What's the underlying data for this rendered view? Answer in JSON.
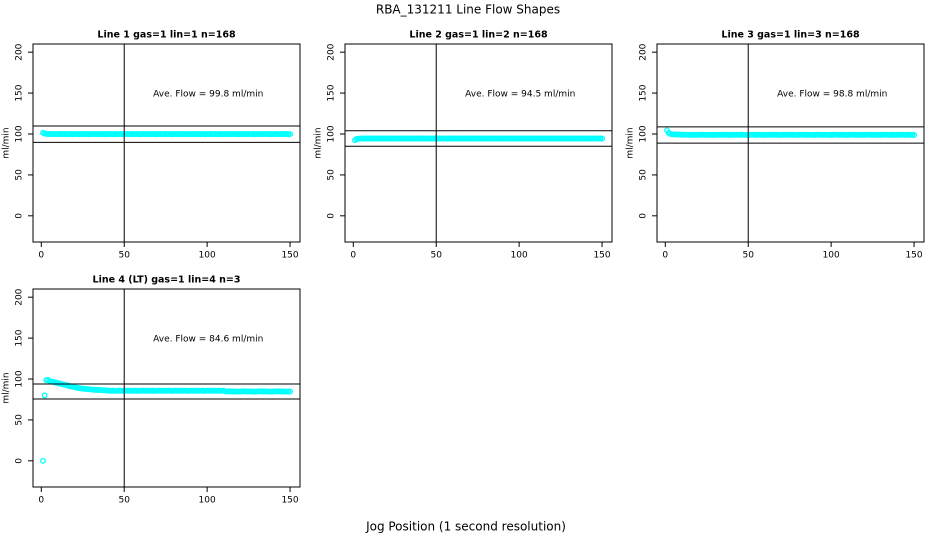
{
  "title": "RBA_131211  Line Flow Shapes",
  "x_label": "Jog Position (1 second resolution)",
  "chart_data": [
    {
      "type": "scatter",
      "title": "Line 1 gas=1 lin=1 n=168",
      "y_label": "ml/min",
      "annotation": "Ave. Flow =  99.8  ml/min",
      "color": "#00ffff",
      "xlim": [
        -5,
        156
      ],
      "ylim": [
        -32,
        210
      ],
      "xticks": [
        0,
        50,
        100,
        150
      ],
      "yticks": [
        0,
        50,
        100,
        150,
        200
      ],
      "hlines": [
        109.8,
        89.8
      ],
      "vline": 50,
      "x": [
        1,
        2,
        3,
        4,
        5,
        6,
        7,
        8,
        9,
        10,
        11,
        12,
        13,
        14,
        15,
        16,
        17,
        18,
        19,
        20,
        21,
        22,
        23,
        24,
        25,
        26,
        27,
        28,
        29,
        30,
        31,
        32,
        33,
        34,
        35,
        36,
        37,
        38,
        39,
        40,
        41,
        42,
        43,
        44,
        45,
        46,
        47,
        48,
        49,
        50,
        51,
        52,
        53,
        54,
        55,
        56,
        57,
        58,
        59,
        60,
        61,
        62,
        63,
        64,
        65,
        66,
        67,
        68,
        69,
        70,
        71,
        72,
        73,
        74,
        75,
        76,
        77,
        78,
        79,
        80,
        81,
        82,
        83,
        84,
        85,
        86,
        87,
        88,
        89,
        90,
        91,
        92,
        93,
        94,
        95,
        96,
        97,
        98,
        99,
        100,
        101,
        102,
        103,
        104,
        105,
        106,
        107,
        108,
        109,
        110,
        111,
        112,
        113,
        114,
        115,
        116,
        117,
        118,
        119,
        120,
        121,
        122,
        123,
        124,
        125,
        126,
        127,
        128,
        129,
        130,
        131,
        132,
        133,
        134,
        135,
        136,
        137,
        138,
        139,
        140,
        141,
        142,
        143,
        144,
        145,
        146,
        147,
        148,
        149,
        150
      ],
      "values": [
        101.5,
        100.6,
        100.2,
        100,
        99.9,
        100,
        100.1,
        99.8,
        99.9,
        100,
        99.9,
        100,
        99.8,
        99.9,
        100.1,
        99.8,
        99.9,
        100,
        99.7,
        99.9,
        99.9,
        100,
        99.8,
        99.9,
        100.1,
        99.8,
        99.9,
        100,
        99.7,
        99.9,
        99.9,
        100,
        99.8,
        99.9,
        100.1,
        99.8,
        99.9,
        100,
        99.7,
        99.9,
        99.9,
        100,
        99.8,
        99.9,
        100.1,
        99.8,
        99.9,
        100,
        99.7,
        99.9,
        99.9,
        100,
        99.8,
        99.9,
        100.1,
        99.8,
        99.9,
        100,
        99.7,
        99.9,
        99.9,
        100,
        99.8,
        99.9,
        100.1,
        99.8,
        99.9,
        100,
        99.7,
        99.9,
        99.9,
        100,
        99.8,
        99.9,
        100.1,
        99.8,
        99.9,
        100,
        99.7,
        99.9,
        99.9,
        100,
        99.8,
        99.9,
        100.1,
        99.8,
        99.9,
        100,
        99.7,
        99.9,
        99.9,
        100,
        99.8,
        99.9,
        100.1,
        99.8,
        99.9,
        100,
        99.7,
        99.9,
        99.9,
        100,
        99.8,
        99.9,
        100.1,
        99.8,
        99.9,
        100,
        99.7,
        99.9,
        99.9,
        100,
        99.8,
        99.9,
        100.1,
        99.8,
        99.9,
        100,
        99.7,
        99.9,
        99.9,
        100,
        99.8,
        99.9,
        100.1,
        99.8,
        99.9,
        100,
        99.7,
        99.9,
        99.9,
        100,
        99.8,
        99.9,
        100.1,
        99.8,
        99.9,
        100,
        99.7,
        99.9,
        99.9,
        100,
        99.8,
        99.9,
        100.1,
        99.8,
        99.9,
        100,
        99.7,
        99.9
      ]
    },
    {
      "type": "scatter",
      "title": "Line 2 gas=1 lin=2 n=168",
      "y_label": "ml/min",
      "annotation": "Ave. Flow =  94.5  ml/min",
      "color": "#00ffff",
      "xlim": [
        -5,
        156
      ],
      "ylim": [
        -32,
        210
      ],
      "xticks": [
        0,
        50,
        100,
        150
      ],
      "yticks": [
        0,
        50,
        100,
        150,
        200
      ],
      "hlines": [
        104,
        85
      ],
      "vline": 50,
      "x": [
        1,
        2,
        3,
        4,
        5,
        6,
        7,
        8,
        9,
        10,
        11,
        12,
        13,
        14,
        15,
        16,
        17,
        18,
        19,
        20,
        21,
        22,
        23,
        24,
        25,
        26,
        27,
        28,
        29,
        30,
        31,
        32,
        33,
        34,
        35,
        36,
        37,
        38,
        39,
        40,
        41,
        42,
        43,
        44,
        45,
        46,
        47,
        48,
        49,
        50,
        51,
        52,
        53,
        54,
        55,
        56,
        57,
        58,
        59,
        60,
        61,
        62,
        63,
        64,
        65,
        66,
        67,
        68,
        69,
        70,
        71,
        72,
        73,
        74,
        75,
        76,
        77,
        78,
        79,
        80,
        81,
        82,
        83,
        84,
        85,
        86,
        87,
        88,
        89,
        90,
        91,
        92,
        93,
        94,
        95,
        96,
        97,
        98,
        99,
        100,
        101,
        102,
        103,
        104,
        105,
        106,
        107,
        108,
        109,
        110,
        111,
        112,
        113,
        114,
        115,
        116,
        117,
        118,
        119,
        120,
        121,
        122,
        123,
        124,
        125,
        126,
        127,
        128,
        129,
        130,
        131,
        132,
        133,
        134,
        135,
        136,
        137,
        138,
        139,
        140,
        141,
        142,
        143,
        144,
        145,
        146,
        147,
        148,
        149,
        150
      ],
      "values": [
        92.5,
        93.8,
        94.2,
        94.4,
        94.5,
        94.5,
        94.4,
        94.6,
        94.5,
        94.5,
        94.5,
        94.6,
        94.4,
        94.5,
        94.6,
        94.5,
        94.4,
        94.6,
        94.5,
        94.5,
        94.5,
        94.6,
        94.4,
        94.5,
        94.6,
        94.5,
        94.4,
        94.6,
        94.5,
        94.5,
        94.5,
        94.6,
        94.4,
        94.5,
        94.6,
        94.5,
        94.4,
        94.6,
        94.5,
        94.5,
        94.5,
        94.6,
        94.4,
        94.5,
        94.6,
        94.5,
        94.4,
        94.6,
        94.5,
        94.5,
        94.5,
        94.6,
        94.4,
        94.5,
        94.6,
        94.5,
        94.4,
        94.6,
        94.5,
        94.5,
        94.5,
        94.6,
        94.4,
        94.5,
        94.6,
        94.5,
        94.4,
        94.6,
        94.5,
        94.5,
        94.5,
        94.6,
        94.4,
        94.5,
        94.6,
        94.5,
        94.4,
        94.6,
        94.5,
        94.5,
        94.5,
        94.6,
        94.4,
        94.5,
        94.6,
        94.5,
        94.4,
        94.6,
        94.5,
        94.5,
        94.5,
        94.6,
        94.4,
        94.5,
        94.6,
        94.5,
        94.4,
        94.6,
        94.5,
        94.5,
        94.5,
        94.6,
        94.4,
        94.5,
        94.6,
        94.5,
        94.4,
        94.6,
        94.5,
        94.5,
        94.5,
        94.6,
        94.4,
        94.5,
        94.6,
        94.5,
        94.4,
        94.6,
        94.5,
        94.5,
        94.5,
        94.6,
        94.4,
        94.5,
        94.6,
        94.5,
        94.4,
        94.6,
        94.5,
        94.5,
        94.5,
        94.6,
        94.4,
        94.5,
        94.6,
        94.5,
        94.4,
        94.6,
        94.5,
        94.5,
        94.5,
        94.6,
        94.4,
        94.5,
        94.6,
        94.5,
        94.4,
        94.6,
        94.5,
        94.5
      ]
    },
    {
      "type": "scatter",
      "title": "Line 3 gas=1 lin=3 n=168",
      "y_label": "ml/min",
      "annotation": "Ave. Flow =  98.8  ml/min",
      "color": "#00ffff",
      "xlim": [
        -5,
        156
      ],
      "ylim": [
        -32,
        210
      ],
      "xticks": [
        0,
        50,
        100,
        150
      ],
      "yticks": [
        0,
        50,
        100,
        150,
        200
      ],
      "hlines": [
        108.7,
        88.9
      ],
      "vline": 50,
      "x": [
        1,
        2,
        3,
        4,
        5,
        6,
        7,
        8,
        9,
        10,
        11,
        12,
        13,
        14,
        15,
        16,
        17,
        18,
        19,
        20,
        21,
        22,
        23,
        24,
        25,
        26,
        27,
        28,
        29,
        30,
        31,
        32,
        33,
        34,
        35,
        36,
        37,
        38,
        39,
        40,
        41,
        42,
        43,
        44,
        45,
        46,
        47,
        48,
        49,
        50,
        51,
        52,
        53,
        54,
        55,
        56,
        57,
        58,
        59,
        60,
        61,
        62,
        63,
        64,
        65,
        66,
        67,
        68,
        69,
        70,
        71,
        72,
        73,
        74,
        75,
        76,
        77,
        78,
        79,
        80,
        81,
        82,
        83,
        84,
        85,
        86,
        87,
        88,
        89,
        90,
        91,
        92,
        93,
        94,
        95,
        96,
        97,
        98,
        99,
        100,
        101,
        102,
        103,
        104,
        105,
        106,
        107,
        108,
        109,
        110,
        111,
        112,
        113,
        114,
        115,
        116,
        117,
        118,
        119,
        120,
        121,
        122,
        123,
        124,
        125,
        126,
        127,
        128,
        129,
        130,
        131,
        132,
        133,
        134,
        135,
        136,
        137,
        138,
        139,
        140,
        141,
        142,
        143,
        144,
        145,
        146,
        147,
        148,
        149,
        150
      ],
      "values": [
        104.5,
        101.5,
        100.3,
        99.8,
        99.6,
        99.5,
        99.4,
        99.3,
        99.3,
        99.2,
        99.1,
        99,
        99.2,
        99,
        98.9,
        99.1,
        99,
        98.9,
        99,
        98.8,
        99.1,
        99,
        99.2,
        99,
        98.9,
        99.1,
        99,
        98.9,
        99,
        98.8,
        99.1,
        99,
        99.2,
        99,
        98.9,
        99.1,
        99,
        98.9,
        99,
        98.8,
        99.1,
        99,
        99.2,
        99,
        98.9,
        99.1,
        99,
        98.9,
        99,
        98.8,
        99.1,
        99,
        99.2,
        99,
        98.9,
        99.1,
        99,
        98.9,
        99,
        98.8,
        99.1,
        99,
        99.2,
        99,
        98.9,
        99.1,
        99,
        98.9,
        99,
        98.8,
        99.1,
        99,
        99.2,
        99,
        98.9,
        99.1,
        99,
        98.9,
        99,
        98.8,
        99.1,
        99,
        99.2,
        99,
        98.9,
        99.1,
        99,
        98.9,
        99,
        98.8,
        99.1,
        99,
        99.2,
        99,
        98.9,
        99.1,
        99,
        98.9,
        99,
        98.8,
        99.1,
        99,
        99.2,
        99,
        98.9,
        99.1,
        99,
        98.9,
        99,
        98.8,
        99.1,
        99,
        99.2,
        99,
        98.9,
        99.1,
        99,
        98.9,
        99,
        98.8,
        99.1,
        99,
        99.2,
        99,
        98.9,
        99.1,
        99,
        98.9,
        99,
        98.8,
        99.1,
        99,
        99.2,
        99,
        98.9,
        99.1,
        99,
        98.9,
        99,
        98.8,
        99.1,
        99,
        99.2,
        99,
        98.9,
        99.1,
        99,
        98.9,
        99,
        98.8
      ]
    },
    {
      "type": "scatter",
      "title": "Line 4 (LT) gas=1 lin=4 n=3",
      "y_label": "ml/min",
      "annotation": "Ave. Flow =  84.6  ml/min",
      "color": "#00ffff",
      "xlim": [
        -5,
        156
      ],
      "ylim": [
        -32,
        210
      ],
      "xticks": [
        0,
        50,
        100,
        150
      ],
      "yticks": [
        0,
        50,
        100,
        150,
        200
      ],
      "hlines": [
        93.9,
        75.6
      ],
      "vline": 50,
      "x": [
        1,
        2,
        3,
        4,
        5,
        6,
        7,
        8,
        9,
        10,
        11,
        12,
        13,
        14,
        15,
        16,
        17,
        18,
        19,
        20,
        21,
        22,
        23,
        24,
        25,
        26,
        27,
        28,
        29,
        30,
        31,
        32,
        33,
        34,
        35,
        36,
        37,
        38,
        39,
        40,
        41,
        42,
        43,
        44,
        45,
        46,
        47,
        48,
        49,
        50,
        51,
        52,
        53,
        54,
        55,
        56,
        57,
        58,
        59,
        60,
        61,
        62,
        63,
        64,
        65,
        66,
        67,
        68,
        69,
        70,
        71,
        72,
        73,
        74,
        75,
        76,
        77,
        78,
        79,
        80,
        81,
        82,
        83,
        84,
        85,
        86,
        87,
        88,
        89,
        90,
        91,
        92,
        93,
        94,
        95,
        96,
        97,
        98,
        99,
        100,
        101,
        102,
        103,
        104,
        105,
        106,
        107,
        108,
        109,
        110,
        111,
        112,
        113,
        114,
        115,
        116,
        117,
        118,
        119,
        120,
        121,
        122,
        123,
        124,
        125,
        126,
        127,
        128,
        129,
        130,
        131,
        132,
        133,
        134,
        135,
        136,
        137,
        138,
        139,
        140,
        141,
        142,
        143,
        144,
        145,
        146,
        147,
        148,
        149,
        150
      ],
      "values": [
        0,
        80,
        98.5,
        99,
        97.5,
        97,
        96.5,
        96,
        95.5,
        95,
        94.5,
        94,
        93.5,
        93,
        92.5,
        92,
        91.5,
        91,
        90.5,
        90,
        89.5,
        89,
        88.8,
        88.5,
        88.2,
        88,
        87.8,
        87.6,
        87.4,
        87.2,
        87,
        86.8,
        86.7,
        86.6,
        86.5,
        86.4,
        86.3,
        86.2,
        86.1,
        86,
        85.8,
        85.6,
        85.9,
        85.5,
        85.7,
        85.6,
        85.8,
        85.5,
        85.6,
        85.7,
        85.8,
        85.6,
        85.9,
        85.5,
        85.7,
        85.6,
        85.8,
        85.5,
        85.6,
        85.7,
        85.8,
        85.6,
        85.9,
        85.5,
        85.7,
        85.6,
        85.8,
        85.5,
        85.6,
        85.7,
        85.8,
        85.6,
        85.9,
        85.5,
        85.7,
        85.6,
        85.8,
        85.5,
        85.6,
        85.7,
        85.8,
        85.6,
        85.9,
        85.5,
        85.7,
        85.6,
        85.8,
        85.5,
        85.6,
        85.7,
        85.8,
        85.6,
        85.9,
        85.5,
        85.7,
        85.6,
        85.8,
        85.5,
        85.6,
        85.7,
        85.8,
        85.6,
        85.9,
        85.5,
        85.7,
        85.6,
        85.8,
        85.5,
        85.6,
        85.7,
        85,
        84.8,
        85.1,
        84.7,
        84.9,
        84.6,
        84.8,
        84.5,
        84.7,
        84.6,
        85,
        84.8,
        85.1,
        84.7,
        84.9,
        84.6,
        84.8,
        84.5,
        84.7,
        84.6,
        85,
        84.8,
        85.1,
        84.7,
        84.9,
        84.6,
        84.8,
        84.5,
        84.7,
        84.6,
        85,
        84.8,
        85.1,
        84.7,
        84.9,
        84.6,
        84.8,
        84.5,
        84.7,
        84.6
      ]
    }
  ]
}
